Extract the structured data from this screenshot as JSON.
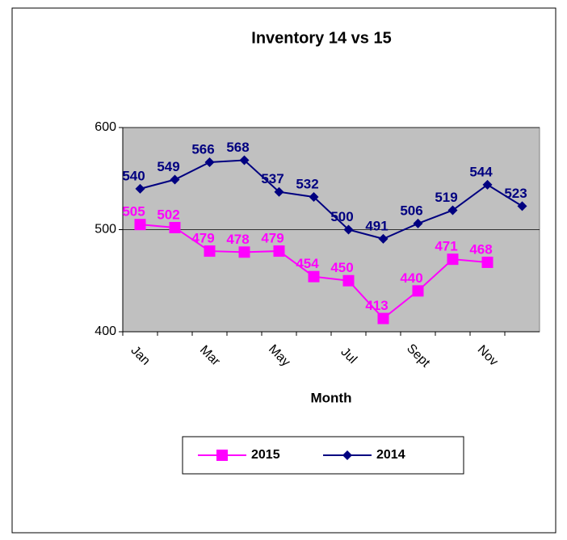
{
  "chart_data": {
    "type": "line",
    "title": "Inventory 14 vs 15",
    "x_label": "Month",
    "categories": [
      "Jan",
      null,
      "Mar",
      null,
      "May",
      null,
      "Jul",
      null,
      "Sept",
      null,
      "Nov",
      null
    ],
    "series": [
      {
        "name": "2015",
        "color": "#ff00ff",
        "marker": "square",
        "values": [
          505,
          502,
          479,
          478,
          479,
          454,
          450,
          413,
          440,
          471,
          468,
          null
        ]
      },
      {
        "name": "2014",
        "color": "#000080",
        "marker": "diamond",
        "values": [
          540,
          549,
          566,
          568,
          537,
          532,
          500,
          491,
          506,
          519,
          544,
          523
        ]
      }
    ],
    "ylim": [
      400,
      600
    ],
    "yticks": [
      400,
      500,
      600
    ],
    "grid": true,
    "legend": "bottom"
  }
}
